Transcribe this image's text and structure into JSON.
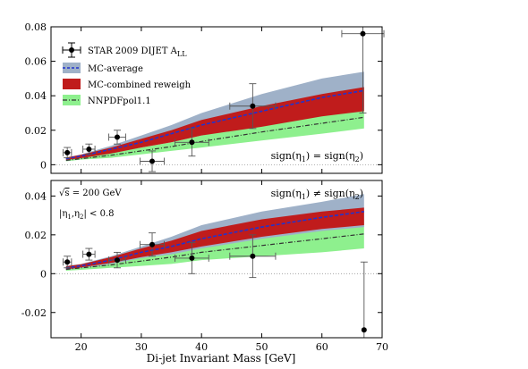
{
  "chart_data": {
    "type": "line",
    "xlabel": "Di-jet Invariant Mass [GeV]",
    "xlim": [
      15,
      70
    ],
    "x_ticks": [
      "20",
      "30",
      "40",
      "50",
      "60",
      "70"
    ],
    "colors": {
      "mc_average_band": "#9fb1c8",
      "mc_average_line": "#2233cc",
      "mc_combined_band": "#c01c1c",
      "nnpdf_band": "#8ef08e",
      "nnpdf_line": "#333333",
      "data_marker": "#000000"
    },
    "legend": {
      "placement": "top-left",
      "entries": [
        {
          "key": "data",
          "label": "STAR 2009 DIJET A",
          "sub": "LL"
        },
        {
          "key": "mc_average",
          "label": "MC-average"
        },
        {
          "key": "mc_combined",
          "label": "MC-combined reweigh"
        },
        {
          "key": "nnpdf",
          "label": "NNPDFpol1.1"
        }
      ]
    },
    "panels": [
      {
        "ylim": [
          -0.005,
          0.08
        ],
        "y_ticks": [
          0,
          0.02,
          0.04,
          0.06,
          0.08
        ],
        "y_tick_labels": [
          "0",
          "0.02",
          "0.04",
          "0.06",
          "0.08"
        ],
        "annotation": {
          "main": "sign(η",
          "a": "1",
          "mid": ") = sign(η",
          "b": "2",
          "end": ")"
        },
        "bands": {
          "x": [
            17.5,
            20,
            25,
            30,
            35,
            40,
            50,
            60,
            67
          ],
          "mc_average_low": [
            0.003,
            0.004,
            0.007,
            0.011,
            0.014,
            0.018,
            0.024,
            0.03,
            0.033
          ],
          "mc_average_high": [
            0.004,
            0.006,
            0.011,
            0.017,
            0.023,
            0.03,
            0.041,
            0.05,
            0.054
          ],
          "mc_average_central": [
            0.0035,
            0.005,
            0.009,
            0.013,
            0.018,
            0.023,
            0.031,
            0.039,
            0.043
          ],
          "mc_combined_low": [
            0.0028,
            0.0038,
            0.0065,
            0.01,
            0.013,
            0.017,
            0.022,
            0.028,
            0.031
          ],
          "mc_combined_high": [
            0.0042,
            0.0058,
            0.01,
            0.015,
            0.02,
            0.026,
            0.034,
            0.041,
            0.045
          ],
          "nnpdf_low": [
            0.002,
            0.003,
            0.004,
            0.006,
            0.008,
            0.01,
            0.014,
            0.018,
            0.021
          ],
          "nnpdf_high": [
            0.003,
            0.0045,
            0.007,
            0.01,
            0.013,
            0.017,
            0.024,
            0.03,
            0.033
          ],
          "nnpdf_central": [
            0.0025,
            0.0035,
            0.0055,
            0.008,
            0.0105,
            0.0135,
            0.019,
            0.024,
            0.0275
          ]
        },
        "points": [
          {
            "x": 17.7,
            "y": 0.007,
            "xerr": 0.7,
            "yerr": 0.003
          },
          {
            "x": 21.3,
            "y": 0.009,
            "xerr": 1.0,
            "yerr": 0.003
          },
          {
            "x": 26.0,
            "y": 0.016,
            "xerr": 1.4,
            "yerr": 0.004
          },
          {
            "x": 31.8,
            "y": 0.002,
            "xerr": 2.0,
            "yerr": 0.006
          },
          {
            "x": 38.4,
            "y": 0.013,
            "xerr": 2.8,
            "yerr": 0.008
          },
          {
            "x": 48.5,
            "y": 0.034,
            "xerr": 3.8,
            "yerr": 0.013
          },
          {
            "x": 66.8,
            "y": 0.076,
            "xerr": 3.5,
            "yerr": 0.046
          }
        ]
      },
      {
        "ylim": [
          -0.033,
          0.048
        ],
        "y_ticks": [
          -0.02,
          0,
          0.02,
          0.04
        ],
        "y_tick_labels": [
          "-0.02",
          "0",
          "0.02",
          "0.04"
        ],
        "annotation": {
          "main": "sign(η",
          "a": "1",
          "mid": ") ≠ sign(η",
          "b": "2",
          "end": ")"
        },
        "energy": {
          "root": "√",
          "s": "s",
          "rest": " = 200 GeV"
        },
        "eta_cut": {
          "open": "|η",
          "a": "1",
          "mid": ",η",
          "b": "2",
          "end": "| < 0.8"
        },
        "bands": {
          "x": [
            17.5,
            20,
            25,
            30,
            35,
            40,
            50,
            60,
            67
          ],
          "mc_average_low": [
            0.002,
            0.003,
            0.005,
            0.008,
            0.01,
            0.013,
            0.018,
            0.022,
            0.024
          ],
          "mc_average_high": [
            0.004,
            0.005,
            0.009,
            0.014,
            0.019,
            0.025,
            0.032,
            0.037,
            0.041
          ],
          "mc_average_central": [
            0.003,
            0.004,
            0.007,
            0.011,
            0.014,
            0.018,
            0.024,
            0.029,
            0.032
          ],
          "mc_combined_low": [
            0.0022,
            0.0032,
            0.0055,
            0.0085,
            0.011,
            0.014,
            0.019,
            0.023,
            0.025
          ],
          "mc_combined_high": [
            0.0038,
            0.0048,
            0.0085,
            0.013,
            0.017,
            0.022,
            0.028,
            0.032,
            0.034
          ],
          "nnpdf_low": [
            0.0015,
            0.002,
            0.003,
            0.004,
            0.005,
            0.007,
            0.009,
            0.011,
            0.013
          ],
          "nnpdf_high": [
            0.003,
            0.004,
            0.006,
            0.009,
            0.012,
            0.015,
            0.02,
            0.025,
            0.028
          ],
          "nnpdf_central": [
            0.0022,
            0.003,
            0.0045,
            0.0065,
            0.0085,
            0.011,
            0.0145,
            0.018,
            0.0205
          ]
        },
        "points": [
          {
            "x": 17.7,
            "y": 0.006,
            "xerr": 0.7,
            "yerr": 0.003
          },
          {
            "x": 21.3,
            "y": 0.01,
            "xerr": 1.0,
            "yerr": 0.003
          },
          {
            "x": 26.0,
            "y": 0.007,
            "xerr": 1.4,
            "yerr": 0.004
          },
          {
            "x": 31.8,
            "y": 0.015,
            "xerr": 2.0,
            "yerr": 0.006
          },
          {
            "x": 38.4,
            "y": 0.008,
            "xerr": 2.8,
            "yerr": 0.008
          },
          {
            "x": 48.5,
            "y": 0.009,
            "xerr": 3.8,
            "yerr": 0.011
          },
          {
            "x": 67.0,
            "y": -0.029,
            "xerr": 0,
            "yerr": 0.035
          }
        ]
      }
    ]
  }
}
